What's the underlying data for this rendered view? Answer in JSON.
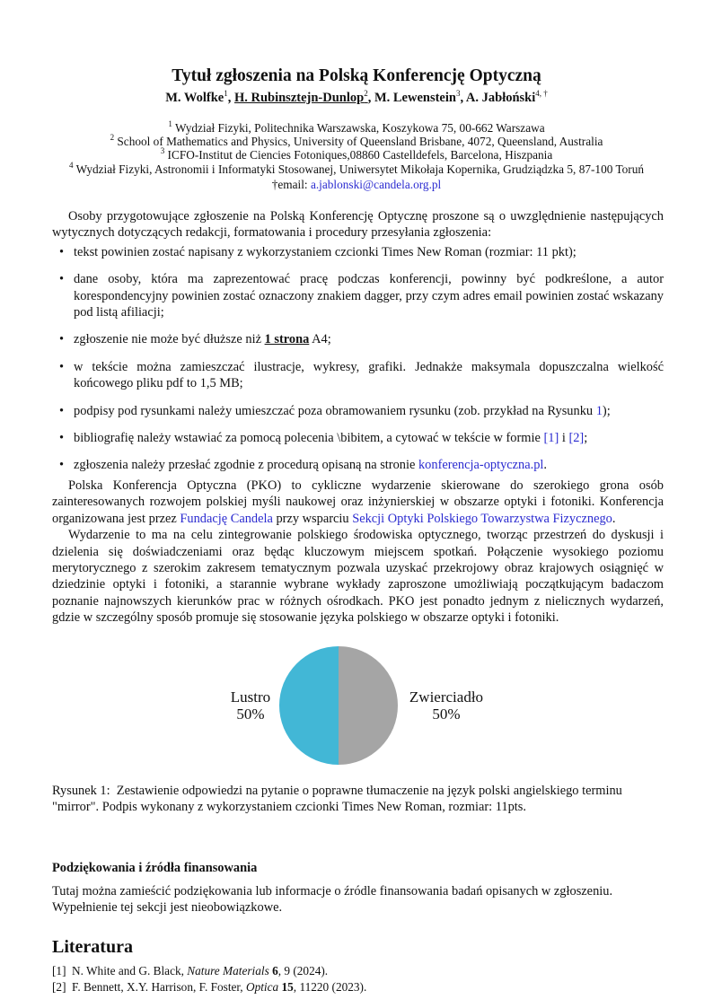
{
  "title": "Tytuł zgłoszenia na Polską Konferencję Optyczną",
  "authors": [
    {
      "name": "M. Wolfke",
      "sup": "1"
    },
    {
      "name": "H. Rubinsztejn-Dunlop",
      "sup": "2"
    },
    {
      "name": "M. Lewenstein",
      "sup": "3"
    },
    {
      "name": "A. Jabłoński",
      "sup": "4, †"
    }
  ],
  "affiliations": [
    {
      "sup": "1",
      "text": "Wydział Fizyki, Politechnika Warszawska, Koszykowa 75, 00-662 Warszawa"
    },
    {
      "sup": "2",
      "text": "School of Mathematics and Physics, University of Queensland Brisbane, 4072, Queensland, Australia"
    },
    {
      "sup": "3",
      "text": "ICFO-Institut de Ciencies Fotoniques,08860 Castelldefels, Barcelona, Hiszpania"
    },
    {
      "sup": "4",
      "text": "Wydział Fizyki, Astronomii i Informatyki Stosowanej, Uniwersytet Mikołaja Kopernika, Grudziądzka 5, 87-100 Toruń"
    }
  ],
  "email_prefix": "†email: ",
  "email": "a.jablonski@candela.org.pl",
  "intro": "Osoby przygotowujące zgłoszenie na Polską Konferencję Optycznę proszone są o uwzględnienie następujących wytycznych dotyczących redakcji, formatowania i procedury przesyłania zgłoszenia:",
  "bullets": {
    "b1": "tekst powinien zostać napisany z wykorzystaniem czcionki Times New Roman (rozmiar: 11 pkt);",
    "b2": "dane osoby, która ma zaprezentować pracę podczas konferencji, powinny być podkreślone, a autor korespondencyjny powinien zostać oznaczony znakiem dagger, przy czym adres email powinien zostać wskazany pod listą afiliacji;",
    "b3_pre": "zgłoszenie nie może być dłuższe niż ",
    "b3_bold": "1 strona",
    "b3_post": " A4;",
    "b4": "w tekście można zamieszczać ilustracje, wykresy, grafiki. Jednakże maksymala dopuszczalna wielkość końcowego pliku pdf to 1,5 MB;",
    "b5_pre": "podpisy pod rysunkami należy umieszczać poza obramowaniem rysunku (zob. przykład na Rysunku ",
    "b5_link": "1",
    "b5_post": ");",
    "b6_pre": "bibliografię należy wstawiać za pomocą polecenia \\bibitem, a cytować w tekście w formie ",
    "b6_ref1": "[1]",
    "b6_mid": " i ",
    "b6_ref2": "[2]",
    "b6_post": ";",
    "b7_pre": "zgłoszenia należy przesłać zgodnie z procedurą opisaną na stronie ",
    "b7_link": "konferencja-optyczna.pl",
    "b7_post": "."
  },
  "para2": {
    "pre": "Polska Konferencja Optyczna (PKO) to cykliczne wydarzenie skierowane do szerokiego grona osób zainteresowanych rozwojem polskiej myśli naukowej oraz inżynierskiej w obszarze optyki i fotoniki. Konferencja organizowana jest przez ",
    "link1": "Fundację Candela",
    "mid": " przy wsparciu ",
    "link2": "Sekcji Optyki Polskiego Towarzystwa Fizycznego",
    "post": "."
  },
  "para3": "Wydarzenie to ma na celu zintegrowanie polskiego środowiska optycznego, tworząc przestrzeń do dyskusji i dzielenia się doświadczeniami oraz będąc kluczowym miejscem spotkań. Połączenie wysokiego poziomu merytorycznego z szerokim zakresem tematycznym pozwala uzyskać przekrojowy obraz krajowych osiągnięć w dziedzinie optyki i fotoniki, a starannie wybrane wykłady zaproszone umożliwiają początkującym badaczom poznanie najnowszych kierunków prac w różnych ośrodkach. PKO jest ponadto jednym z nielicznych wydarzeń, gdzie w szczególny sposób promuje się stosowanie języka polskiego w obszarze optyki i fotoniki.",
  "chart_data": {
    "type": "pie",
    "slices": [
      {
        "label": "Lustro",
        "value": 50,
        "value_label": "50%",
        "color": "#42b7d6"
      },
      {
        "label": "Zwierciadło",
        "value": 50,
        "value_label": "50%",
        "color": "#a5a5a5"
      }
    ]
  },
  "caption": {
    "label": "Rysunek 1:",
    "text": "Zestawienie odpowiedzi na pytanie o poprawne tłumaczenie na język polski angielskiego terminu \"mirror\". Podpis wykonany z wykorzystaniem czcionki Times New Roman, rozmiar: 11pts."
  },
  "acknowledgements": {
    "heading": "Podziękowania i źródła finansowania",
    "text": "Tutaj można zamieścić podziękowania lub informacje o źródle finansowania badań opisanych w zgłoszeniu. Wypełnienie tej sekcji jest nieobowiązkowe."
  },
  "references": {
    "heading": "Literatura",
    "items": [
      {
        "num": "[1]",
        "authors": "N. White and G. Black, ",
        "journal": "Nature Materials",
        "vol": " 6",
        "rest": ", 9 (2024)."
      },
      {
        "num": "[2]",
        "authors": "F. Bennett, X.Y. Harrison, F. Foster, ",
        "journal": "Optica",
        "vol": " 15",
        "rest": ", 11220 (2023)."
      }
    ]
  }
}
